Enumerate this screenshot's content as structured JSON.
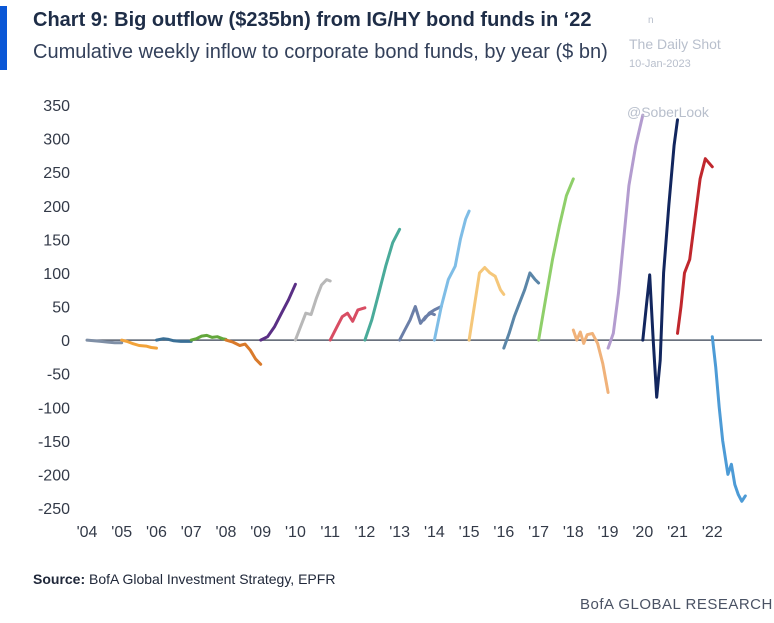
{
  "header": {
    "title": "Chart 9: Big outflow ($235bn) from IG/HY bond funds in ‘22",
    "subtitle": "Cumulative weekly inflow to corporate bond funds, by year ($ bn)"
  },
  "watermark": {
    "source": "The Daily Shot",
    "date": "10-Jan-2023",
    "handle": "@SoberLook",
    "fragment": "n"
  },
  "footer": {
    "source_label": "Source:",
    "source_text": "BofA Global Investment Strategy, EPFR",
    "brand": "BofA GLOBAL RESEARCH"
  },
  "chart_data": {
    "type": "line",
    "title": "Chart 9: Big outflow ($235bn) from IG/HY bond funds in ‘22",
    "ylabel": "$ bn",
    "ylim": [
      -250,
      350
    ],
    "xlim": [
      2004,
      2023
    ],
    "yticks": [
      350,
      300,
      250,
      200,
      150,
      100,
      50,
      0,
      -50,
      -100,
      -150,
      -200,
      -250
    ],
    "xticks": [
      {
        "v": 2004,
        "label": "'04"
      },
      {
        "v": 2005,
        "label": "'05"
      },
      {
        "v": 2006,
        "label": "'06"
      },
      {
        "v": 2007,
        "label": "'07"
      },
      {
        "v": 2008,
        "label": "'08"
      },
      {
        "v": 2009,
        "label": "'09"
      },
      {
        "v": 2010,
        "label": "'10"
      },
      {
        "v": 2011,
        "label": "'11"
      },
      {
        "v": 2012,
        "label": "'12"
      },
      {
        "v": 2013,
        "label": "'13"
      },
      {
        "v": 2014,
        "label": "'14"
      },
      {
        "v": 2015,
        "label": "'15"
      },
      {
        "v": 2016,
        "label": "'16"
      },
      {
        "v": 2017,
        "label": "'17"
      },
      {
        "v": 2018,
        "label": "'18"
      },
      {
        "v": 2019,
        "label": "'19"
      },
      {
        "v": 2020,
        "label": "'20"
      },
      {
        "v": 2021,
        "label": "'21"
      },
      {
        "v": 2022,
        "label": "'22"
      }
    ],
    "zero_line_color": "#555d6b",
    "series": [
      {
        "name": "2004",
        "color": "#7f8fa6",
        "points": [
          [
            2004.0,
            0
          ],
          [
            2004.2,
            -1
          ],
          [
            2004.4,
            -2
          ],
          [
            2004.6,
            -3
          ],
          [
            2004.8,
            -4
          ],
          [
            2005.0,
            -4
          ]
        ]
      },
      {
        "name": "2005",
        "color": "#f2a33a",
        "points": [
          [
            2005.0,
            0
          ],
          [
            2005.15,
            -2
          ],
          [
            2005.3,
            -5
          ],
          [
            2005.5,
            -8
          ],
          [
            2005.7,
            -9
          ],
          [
            2005.85,
            -11
          ],
          [
            2006.0,
            -12
          ]
        ]
      },
      {
        "name": "2006",
        "color": "#3a6f96",
        "points": [
          [
            2006.0,
            0
          ],
          [
            2006.2,
            2
          ],
          [
            2006.35,
            1
          ],
          [
            2006.5,
            -1
          ],
          [
            2006.7,
            -2
          ],
          [
            2006.85,
            -2
          ],
          [
            2007.0,
            -2
          ]
        ]
      },
      {
        "name": "2007",
        "color": "#63a73c",
        "points": [
          [
            2007.0,
            0
          ],
          [
            2007.15,
            2
          ],
          [
            2007.3,
            6
          ],
          [
            2007.45,
            7
          ],
          [
            2007.6,
            4
          ],
          [
            2007.75,
            5
          ],
          [
            2007.9,
            2
          ],
          [
            2008.0,
            1
          ]
        ]
      },
      {
        "name": "2008",
        "color": "#d97a2b",
        "points": [
          [
            2008.0,
            0
          ],
          [
            2008.2,
            -3
          ],
          [
            2008.4,
            -8
          ],
          [
            2008.55,
            -6
          ],
          [
            2008.7,
            -15
          ],
          [
            2008.85,
            -28
          ],
          [
            2009.0,
            -36
          ]
        ]
      },
      {
        "name": "2009",
        "color": "#5a2f85",
        "points": [
          [
            2009.0,
            0
          ],
          [
            2009.2,
            5
          ],
          [
            2009.4,
            20
          ],
          [
            2009.6,
            40
          ],
          [
            2009.8,
            60
          ],
          [
            2010.0,
            83
          ]
        ]
      },
      {
        "name": "2010",
        "color": "#b8b8b8",
        "points": [
          [
            2010.0,
            0
          ],
          [
            2010.15,
            20
          ],
          [
            2010.3,
            40
          ],
          [
            2010.45,
            38
          ],
          [
            2010.6,
            62
          ],
          [
            2010.75,
            82
          ],
          [
            2010.9,
            90
          ],
          [
            2011.0,
            88
          ]
        ]
      },
      {
        "name": "2011",
        "color": "#d84d63",
        "points": [
          [
            2011.0,
            0
          ],
          [
            2011.2,
            20
          ],
          [
            2011.35,
            35
          ],
          [
            2011.5,
            40
          ],
          [
            2011.65,
            28
          ],
          [
            2011.8,
            45
          ],
          [
            2012.0,
            48
          ]
        ]
      },
      {
        "name": "2012",
        "color": "#4aab9a",
        "points": [
          [
            2012.0,
            0
          ],
          [
            2012.2,
            30
          ],
          [
            2012.4,
            70
          ],
          [
            2012.6,
            110
          ],
          [
            2012.8,
            145
          ],
          [
            2013.0,
            165
          ]
        ]
      },
      {
        "name": "2013",
        "color": "#6b7fa8",
        "points": [
          [
            2013.0,
            0
          ],
          [
            2013.15,
            15
          ],
          [
            2013.3,
            30
          ],
          [
            2013.45,
            50
          ],
          [
            2013.6,
            25
          ],
          [
            2013.75,
            35
          ],
          [
            2013.9,
            40
          ],
          [
            2014.0,
            38
          ]
        ]
      },
      {
        "name": "2013-14",
        "color": "#6b7fa8",
        "points": [
          [
            2013.7,
            30
          ],
          [
            2013.85,
            40
          ],
          [
            2014.0,
            45
          ],
          [
            2014.2,
            50
          ]
        ]
      },
      {
        "name": "2014",
        "color": "#7fbde6",
        "points": [
          [
            2014.0,
            0
          ],
          [
            2014.2,
            50
          ],
          [
            2014.4,
            90
          ],
          [
            2014.6,
            110
          ],
          [
            2014.75,
            150
          ],
          [
            2014.9,
            180
          ],
          [
            2015.0,
            192
          ]
        ]
      },
      {
        "name": "2015",
        "color": "#f5c77a",
        "points": [
          [
            2015.0,
            0
          ],
          [
            2015.15,
            50
          ],
          [
            2015.3,
            100
          ],
          [
            2015.45,
            108
          ],
          [
            2015.6,
            100
          ],
          [
            2015.75,
            95
          ],
          [
            2015.9,
            75
          ],
          [
            2016.0,
            68
          ]
        ]
      },
      {
        "name": "2016",
        "color": "#5b86a8",
        "points": [
          [
            2016.0,
            -12
          ],
          [
            2016.15,
            10
          ],
          [
            2016.3,
            35
          ],
          [
            2016.45,
            55
          ],
          [
            2016.6,
            75
          ],
          [
            2016.75,
            100
          ],
          [
            2016.9,
            90
          ],
          [
            2017.0,
            85
          ]
        ]
      },
      {
        "name": "2017",
        "color": "#8fcf6a",
        "points": [
          [
            2017.0,
            0
          ],
          [
            2017.2,
            60
          ],
          [
            2017.4,
            120
          ],
          [
            2017.6,
            170
          ],
          [
            2017.8,
            215
          ],
          [
            2018.0,
            240
          ]
        ]
      },
      {
        "name": "2018",
        "color": "#f0b27a",
        "points": [
          [
            2018.0,
            15
          ],
          [
            2018.1,
            0
          ],
          [
            2018.2,
            12
          ],
          [
            2018.3,
            -5
          ],
          [
            2018.4,
            8
          ],
          [
            2018.55,
            10
          ],
          [
            2018.7,
            -5
          ],
          [
            2018.85,
            -35
          ],
          [
            2019.0,
            -78
          ]
        ]
      },
      {
        "name": "2019",
        "color": "#b39ccf",
        "points": [
          [
            2019.0,
            -12
          ],
          [
            2019.15,
            10
          ],
          [
            2019.3,
            70
          ],
          [
            2019.45,
            150
          ],
          [
            2019.6,
            230
          ],
          [
            2019.8,
            290
          ],
          [
            2020.0,
            335
          ]
        ]
      },
      {
        "name": "2020",
        "color": "#12265e",
        "points": [
          [
            2020.0,
            0
          ],
          [
            2020.1,
            50
          ],
          [
            2020.2,
            97
          ],
          [
            2020.3,
            0
          ],
          [
            2020.4,
            -85
          ],
          [
            2020.5,
            -30
          ],
          [
            2020.6,
            100
          ],
          [
            2020.75,
            200
          ],
          [
            2020.9,
            290
          ],
          [
            2021.0,
            328
          ]
        ]
      },
      {
        "name": "2021",
        "color": "#c0272d",
        "points": [
          [
            2021.0,
            10
          ],
          [
            2021.1,
            50
          ],
          [
            2021.2,
            100
          ],
          [
            2021.35,
            120
          ],
          [
            2021.5,
            180
          ],
          [
            2021.65,
            240
          ],
          [
            2021.8,
            270
          ],
          [
            2022.0,
            258
          ]
        ]
      },
      {
        "name": "2022",
        "color": "#4d9bd6",
        "points": [
          [
            2022.0,
            5
          ],
          [
            2022.1,
            -40
          ],
          [
            2022.2,
            -100
          ],
          [
            2022.3,
            -150
          ],
          [
            2022.45,
            -200
          ],
          [
            2022.55,
            -185
          ],
          [
            2022.65,
            -215
          ],
          [
            2022.75,
            -230
          ],
          [
            2022.85,
            -240
          ],
          [
            2022.95,
            -232
          ]
        ]
      }
    ]
  }
}
